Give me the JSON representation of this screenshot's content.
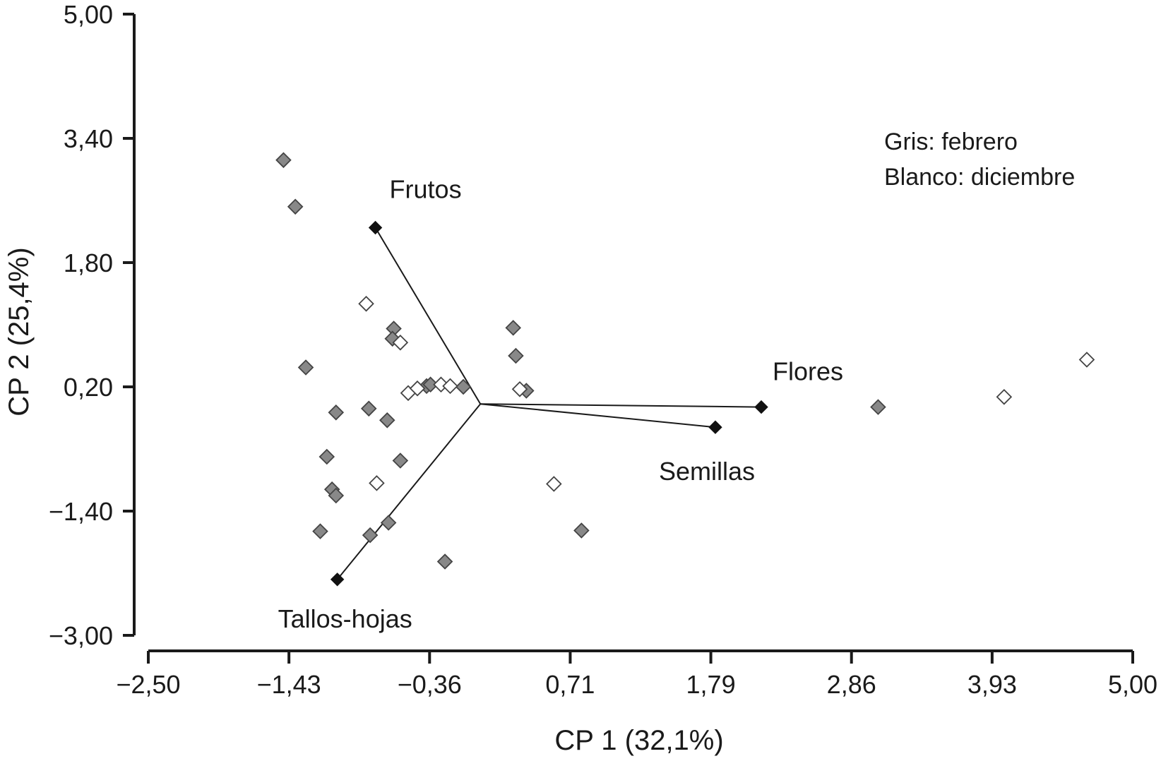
{
  "chart_data": {
    "type": "scatter",
    "title": "",
    "xlabel": "CP 1 (32,1%)",
    "ylabel": "CP 2 (25,4%)",
    "xlim": [
      -2.5,
      5.0
    ],
    "ylim": [
      -3.0,
      5.0
    ],
    "x_tick_labels": [
      "−2,50",
      "−1,43",
      "−0,36",
      "0,71",
      "1,79",
      "2,86",
      "3,93",
      "5,00"
    ],
    "y_tick_labels": [
      "5,00",
      "3,40",
      "1,80",
      "0,20",
      "−1,40",
      "−3,00"
    ],
    "legend": [
      "Gris: febrero",
      "Blanco: diciembre"
    ],
    "series": [
      {
        "name": "febrero",
        "marker": "diamond",
        "fill": "#888888",
        "points": [
          [
            -1.47,
            3.12
          ],
          [
            -1.38,
            2.52
          ],
          [
            -1.3,
            0.45
          ],
          [
            -1.19,
            -1.66
          ],
          [
            -1.14,
            -0.7
          ],
          [
            -1.1,
            -1.12
          ],
          [
            -1.07,
            -1.2
          ],
          [
            -1.07,
            -0.13
          ],
          [
            -0.81,
            -1.71
          ],
          [
            -0.82,
            -0.08
          ],
          [
            -0.67,
            -1.55
          ],
          [
            -0.63,
            0.95
          ],
          [
            -0.64,
            0.82
          ],
          [
            -0.68,
            -0.23
          ],
          [
            -0.58,
            -0.75
          ],
          [
            -0.38,
            0.21
          ],
          [
            -0.35,
            0.23
          ],
          [
            -0.24,
            -2.05
          ],
          [
            -0.1,
            0.2
          ],
          [
            0.28,
            0.96
          ],
          [
            0.3,
            0.6
          ],
          [
            0.38,
            0.15
          ],
          [
            0.8,
            -1.65
          ],
          [
            3.06,
            -0.06
          ]
        ]
      },
      {
        "name": "diciembre",
        "marker": "diamond",
        "fill": "#ffffff",
        "points": [
          [
            -0.84,
            1.27
          ],
          [
            -0.58,
            0.77
          ],
          [
            -0.52,
            0.12
          ],
          [
            -0.45,
            0.18
          ],
          [
            -0.27,
            0.23
          ],
          [
            -0.2,
            0.21
          ],
          [
            0.33,
            0.17
          ],
          [
            0.59,
            -1.05
          ],
          [
            -0.76,
            -1.04
          ],
          [
            4.02,
            0.07
          ],
          [
            4.65,
            0.55
          ]
        ]
      }
    ],
    "vectors": {
      "origin": [
        0.03,
        -0.02
      ],
      "items": [
        {
          "label": "Frutos",
          "x": -0.77,
          "y": 2.25
        },
        {
          "label": "Flores",
          "x": 2.17,
          "y": -0.06
        },
        {
          "label": "Semillas",
          "x": 1.82,
          "y": -0.32
        },
        {
          "label": "Tallos-hojas",
          "x": -1.06,
          "y": -2.28
        }
      ]
    }
  }
}
